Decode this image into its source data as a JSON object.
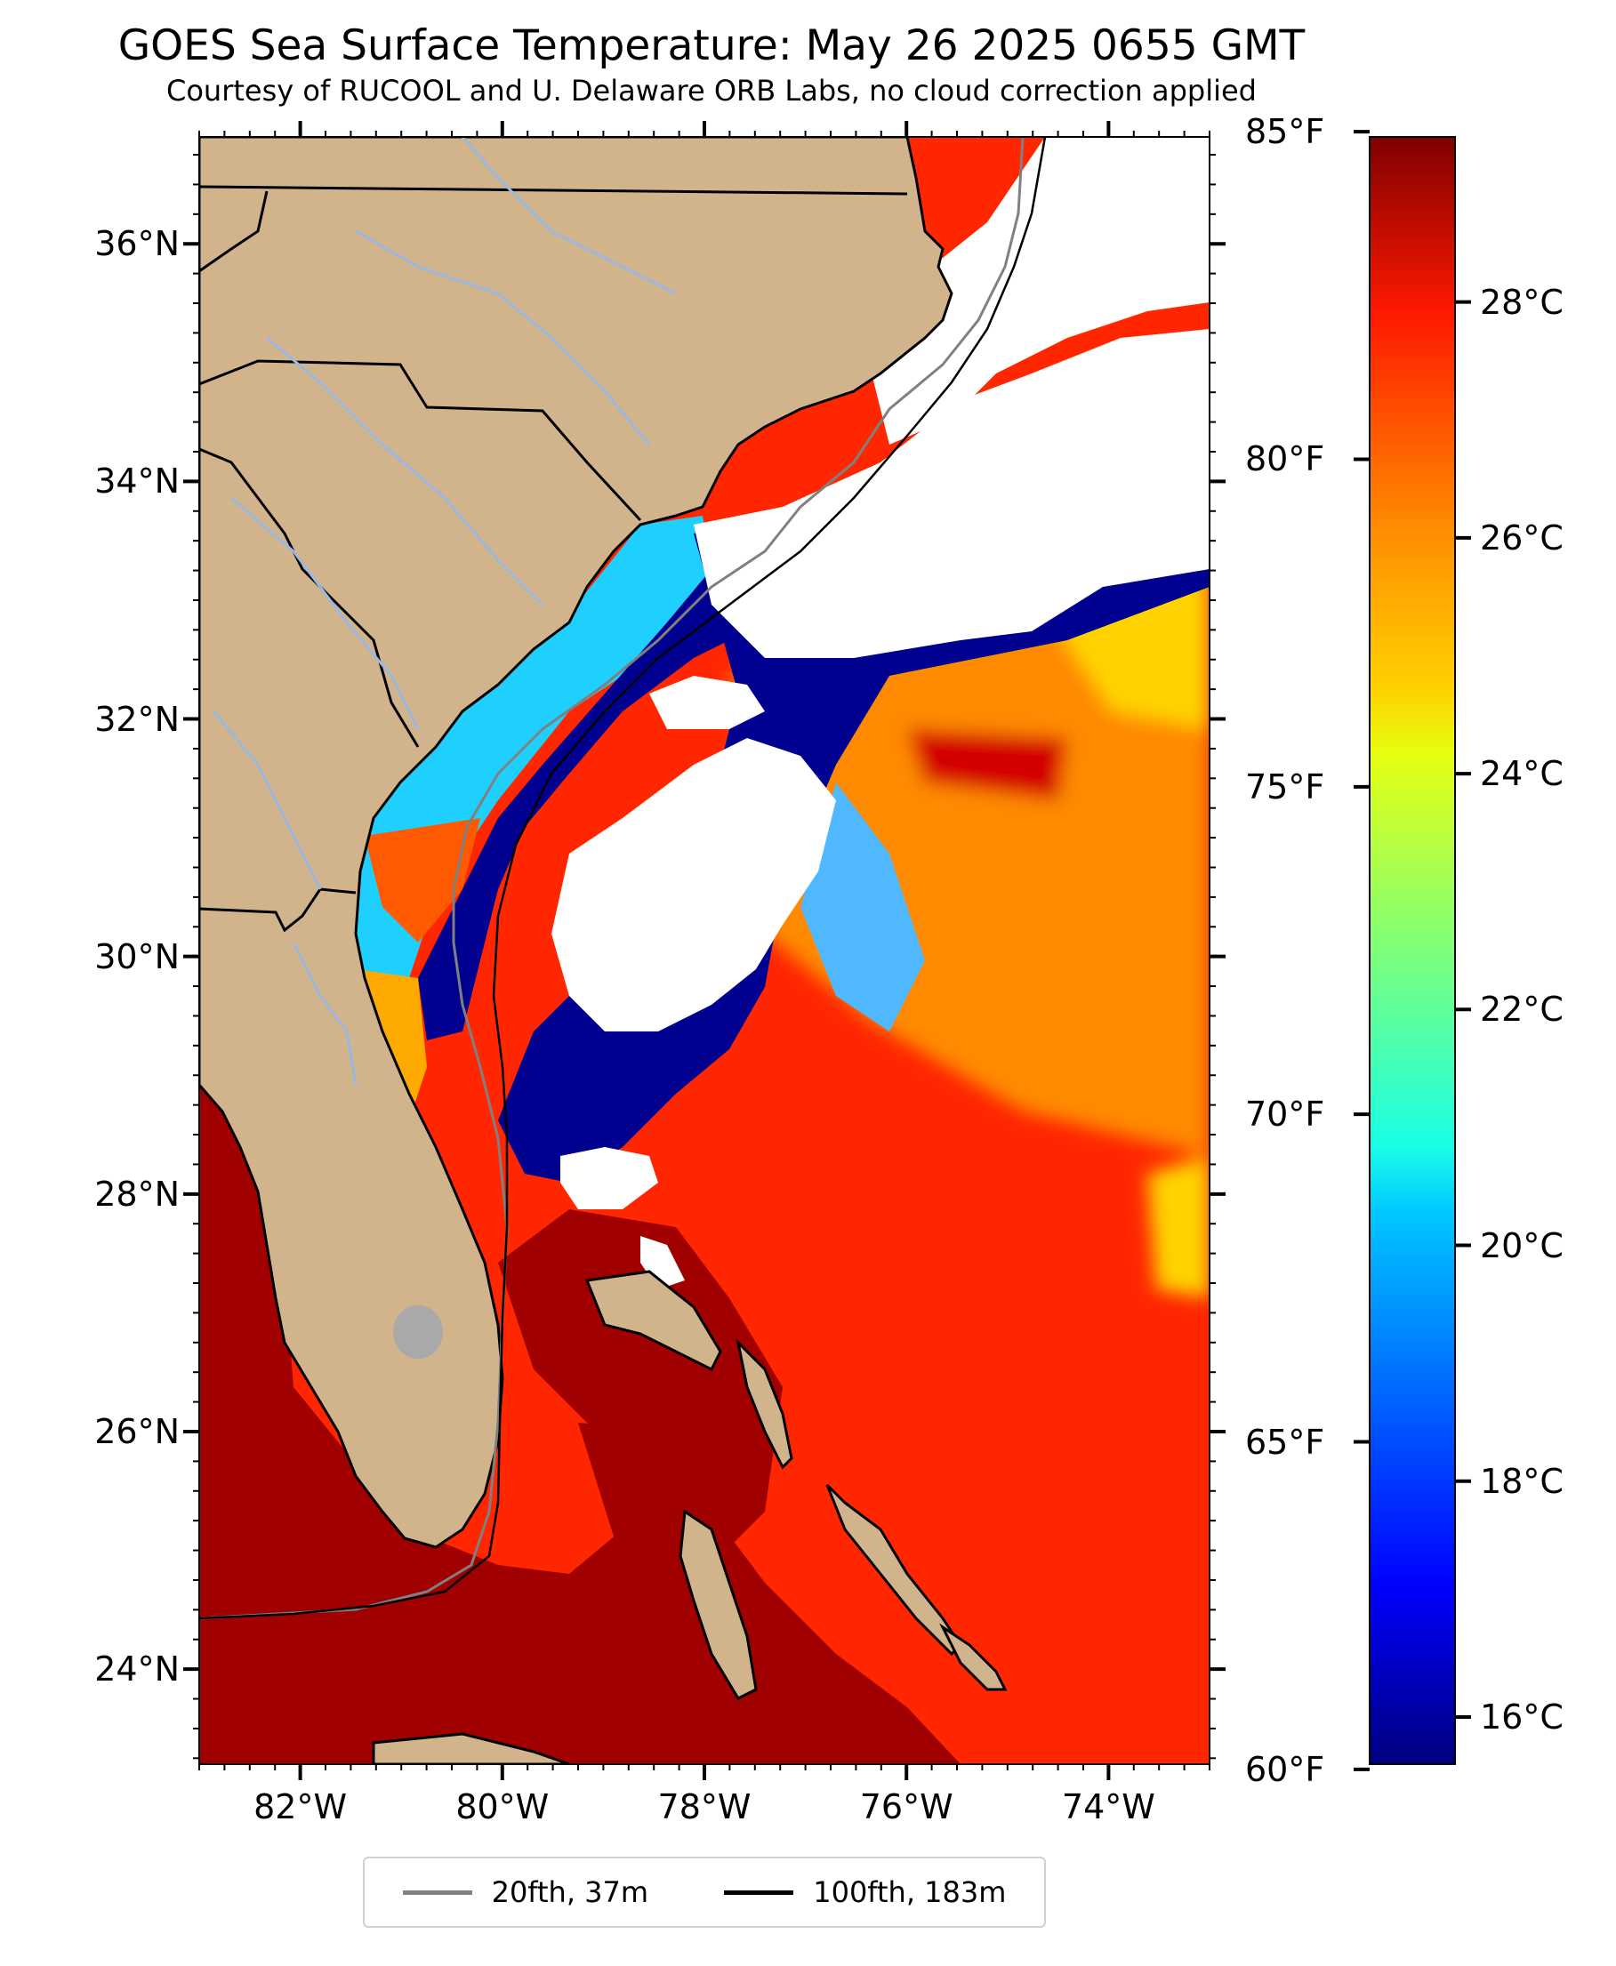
{
  "title": "GOES Sea Surface Temperature: May 26 2025 0655 GMT",
  "subtitle": "Courtesy of RUCOOL and U. Delaware ORB Labs, no cloud correction applied",
  "map": {
    "lon_range": [
      -83,
      -73
    ],
    "lat_range": [
      23.2,
      36.9
    ],
    "lat_ticks": [
      {
        "value": 36,
        "label": "36°N"
      },
      {
        "value": 34,
        "label": "34°N"
      },
      {
        "value": 32,
        "label": "32°N"
      },
      {
        "value": 30,
        "label": "30°N"
      },
      {
        "value": 28,
        "label": "28°N"
      },
      {
        "value": 26,
        "label": "26°N"
      },
      {
        "value": 24,
        "label": "24°N"
      }
    ],
    "lon_ticks": [
      {
        "value": -82,
        "label": "82°W"
      },
      {
        "value": -80,
        "label": "80°W"
      },
      {
        "value": -78,
        "label": "78°W"
      },
      {
        "value": -76,
        "label": "76°W"
      },
      {
        "value": -74,
        "label": "74°W"
      }
    ],
    "colors": {
      "land": "#d2b48c",
      "cloud": "#ffffff",
      "river": "#9bb8e0",
      "isobath_20": "#808080",
      "isobath_100": "#000000"
    }
  },
  "colorbar": {
    "colormap": "jet",
    "range_c": [
      15.6,
      29.4
    ],
    "fahrenheit_ticks": [
      {
        "value": 85,
        "label": "85°F"
      },
      {
        "value": 80,
        "label": "80°F"
      },
      {
        "value": 75,
        "label": "75°F"
      },
      {
        "value": 70,
        "label": "70°F"
      },
      {
        "value": 65,
        "label": "65°F"
      },
      {
        "value": 60,
        "label": "60°F"
      }
    ],
    "celsius_ticks": [
      {
        "value": 28,
        "label": "28°C"
      },
      {
        "value": 26,
        "label": "26°C"
      },
      {
        "value": 24,
        "label": "24°C"
      },
      {
        "value": 22,
        "label": "22°C"
      },
      {
        "value": 20,
        "label": "20°C"
      },
      {
        "value": 18,
        "label": "18°C"
      },
      {
        "value": 16,
        "label": "16°C"
      }
    ]
  },
  "legend": {
    "items": [
      {
        "label": "20fth, 37m",
        "color": "#808080"
      },
      {
        "label": "100fth, 183m",
        "color": "#000000"
      }
    ]
  }
}
